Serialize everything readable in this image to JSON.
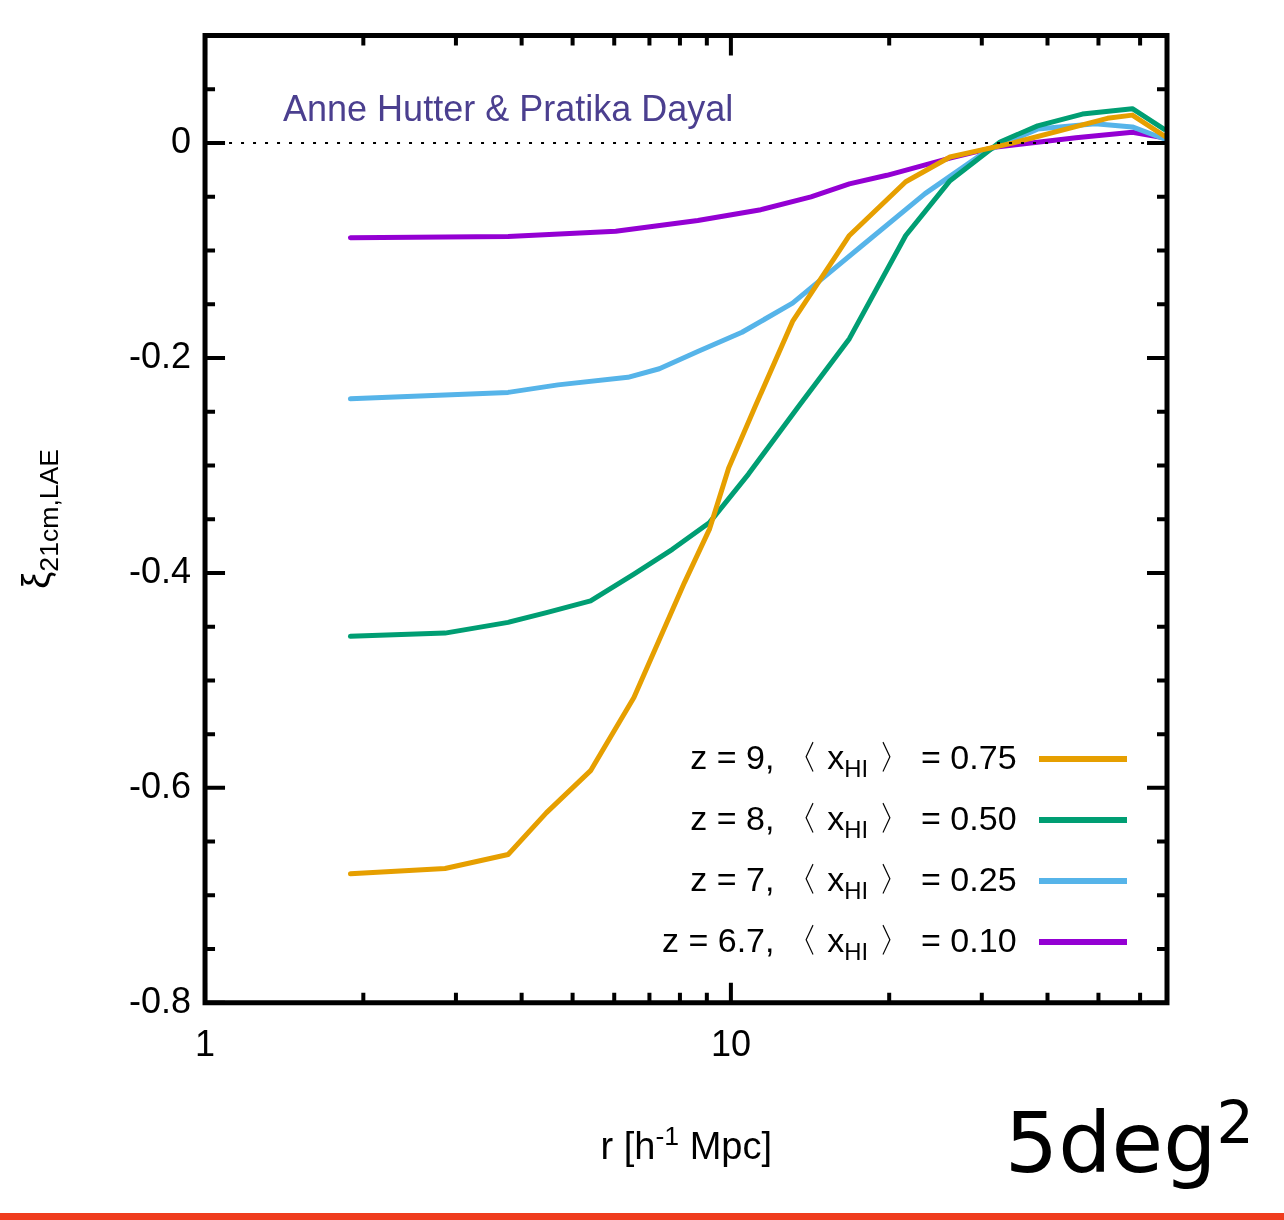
{
  "chart_data": {
    "type": "line",
    "xlabel": "r [h$^{-1}$ Mpc]",
    "ylabel": "ξ$_{21cm,LAE}$",
    "log": "x",
    "xlim": [
      1,
      67.5
    ],
    "ylim": [
      -0.8,
      0.1
    ],
    "xticks": [
      1,
      {
        "value": 2,
        "label": null
      },
      {
        "value": 3,
        "label": null
      },
      {
        "value": 4,
        "label": null
      },
      {
        "value": 5,
        "label": null
      },
      {
        "value": 6,
        "label": null
      },
      {
        "value": 7,
        "label": null
      },
      {
        "value": 8,
        "label": null
      },
      {
        "value": 9,
        "label": null
      },
      10,
      {
        "value": 20,
        "label": null
      },
      {
        "value": 30,
        "label": null
      },
      {
        "value": 40,
        "label": null
      },
      {
        "value": 50,
        "label": null
      },
      {
        "value": 60,
        "label": null
      }
    ],
    "yticks": [
      -0.8,
      {
        "value": -0.75,
        "label": null
      },
      {
        "value": -0.7,
        "label": null
      },
      {
        "value": -0.65,
        "label": null
      },
      -0.6,
      {
        "value": -0.55,
        "label": null
      },
      {
        "value": -0.5,
        "label": null
      },
      {
        "value": -0.45,
        "label": null
      },
      -0.4,
      {
        "value": -0.35,
        "label": null
      },
      {
        "value": -0.3,
        "label": null
      },
      {
        "value": -0.25,
        "label": null
      },
      -0.2,
      {
        "value": -0.15,
        "label": null
      },
      {
        "value": -0.1,
        "label": null
      },
      {
        "value": -0.05,
        "label": null
      },
      0,
      {
        "value": 0.05,
        "label": null
      }
    ],
    "grid": false,
    "legend": "bottom right",
    "marker": "none",
    "line_style": "solid",
    "ref_lines": [
      {
        "axis": "y",
        "value": 0,
        "color": "#000000",
        "line_style": "dotted"
      }
    ],
    "annotations": [
      "Anne Hutter & Pratika Dayal",
      "5deg$^{2}$"
    ],
    "series": [
      {
        "name": "z = 9,  〈 x$_{HI}$ 〉 = 0.75",
        "color": "#e69f00",
        "x": [
          1.89,
          2.86,
          3.77,
          4.46,
          5.41,
          6.54,
          8.16,
          9.11,
          9.91,
          11.1,
          13.1,
          16.8,
          21.5,
          26.1,
          34.3,
          52.0,
          58.0,
          67.5
        ],
        "values": [
          -0.68,
          -0.675,
          -0.662,
          -0.623,
          -0.584,
          -0.516,
          -0.409,
          -0.359,
          -0.302,
          -0.246,
          -0.166,
          -0.086,
          -0.036,
          -0.013,
          0.0,
          0.023,
          0.026,
          0.005
        ]
      },
      {
        "name": "z = 8,  〈 x$_{HI}$ 〉 = 0.50",
        "color": "#009e73",
        "x": [
          1.89,
          2.86,
          3.77,
          4.46,
          5.41,
          6.54,
          7.74,
          9.11,
          10.8,
          13.4,
          16.8,
          21.5,
          26.1,
          32.5,
          38.3,
          46.6,
          58.0,
          66.6
        ],
        "values": [
          -0.459,
          -0.456,
          -0.446,
          -0.437,
          -0.426,
          -0.401,
          -0.378,
          -0.353,
          -0.308,
          -0.246,
          -0.182,
          -0.086,
          -0.035,
          0.001,
          0.016,
          0.027,
          0.032,
          0.013
        ]
      },
      {
        "name": "z = 7,  〈 x$_{HI}$ 〉 = 0.25",
        "color": "#56b4e9",
        "x": [
          1.89,
          3.77,
          4.69,
          6.37,
          7.31,
          8.65,
          10.5,
          13.1,
          17.7,
          23.4,
          30.7,
          38.3,
          49.3,
          58.0,
          66.6
        ],
        "values": [
          -0.238,
          -0.232,
          -0.225,
          -0.218,
          -0.21,
          -0.194,
          -0.176,
          -0.149,
          -0.096,
          -0.047,
          -0.007,
          0.013,
          0.018,
          0.015,
          0.004
        ]
      },
      {
        "name": "z = 6.7,  〈 x$_{HI}$ 〉 = 0.10",
        "color": "#9400d3",
        "x": [
          1.89,
          3.77,
          6.04,
          8.65,
          11.4,
          14.2,
          16.8,
          19.8,
          26.1,
          31.7,
          45.3,
          58.0,
          66.6
        ],
        "values": [
          -0.088,
          -0.087,
          -0.082,
          -0.072,
          -0.062,
          -0.05,
          -0.038,
          -0.03,
          -0.014,
          -0.004,
          0.005,
          0.01,
          0.005
        ]
      }
    ]
  }
}
